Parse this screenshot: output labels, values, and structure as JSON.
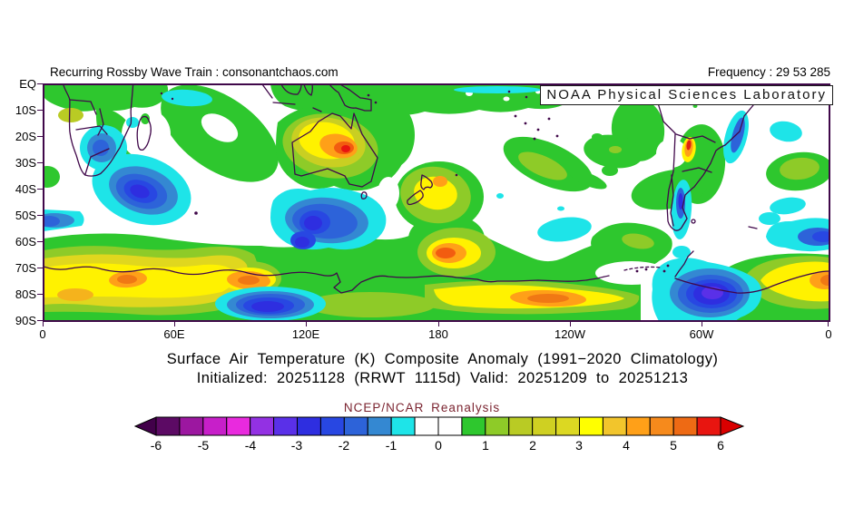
{
  "header": {
    "watermark": "Recurring Rossby Wave Train : consonantchaos.com",
    "frequency_label": "Frequency : 29 53 285",
    "lab_label": "NOAA Physical Sciences Laboratory"
  },
  "titles": {
    "line1": "Surface Air Temperature (K) Composite Anomaly (1991−2020 Climatology)",
    "line2": "Initialized: 20251128 (RRWT 1115d) Valid: 20251209 to 20251213",
    "legend_title": "NCEP/NCAR Reanalysis"
  },
  "axes": {
    "y_ticks": [
      "EQ",
      "10S",
      "20S",
      "30S",
      "40S",
      "50S",
      "60S",
      "70S",
      "80S",
      "90S"
    ],
    "x_ticks": [
      "0",
      "60E",
      "120E",
      "180",
      "120W",
      "60W",
      "0"
    ]
  },
  "colorbar": {
    "tick_labels": [
      "-6",
      "-5",
      "-4",
      "-3",
      "-2",
      "-1",
      "0",
      "1",
      "2",
      "3",
      "4",
      "5",
      "6"
    ],
    "left_arrow_color": "#42004a",
    "right_arrow_color": "#d90000",
    "segment_colors": [
      "#5c0a64",
      "#9c17a0",
      "#c71fc9",
      "#e92ade",
      "#9331e3",
      "#5a30e8",
      "#2e2ee0",
      "#2847e2",
      "#2d63d9",
      "#3488d2",
      "#1ee4e8",
      "#ffffff",
      "#ffffff",
      "#2ec72e",
      "#8ecb28",
      "#b9cb24",
      "#cfd022",
      "#dcd822",
      "#ffff00",
      "#f2c52c",
      "#ffa018",
      "#f68a1c",
      "#ee6a14",
      "#e81510"
    ]
  },
  "chart_data": {
    "type": "heatmap",
    "title": "Surface Air Temperature (K) Composite Anomaly (1991−2020 Climatology)",
    "subtitle": "Initialized: 20251128 (RRWT 1115d) Valid: 20251209 to 20251213",
    "source": "NCEP/NCAR Reanalysis",
    "units": "K",
    "projection": "cylindrical equidistant, longitude 0E-360E, latitude EQ-90S",
    "x_axis": {
      "label": "longitude",
      "ticks": [
        "0",
        "60E",
        "120E",
        "180",
        "120W",
        "60W",
        "0"
      ]
    },
    "y_axis": {
      "label": "latitude",
      "ticks": [
        "EQ",
        "10S",
        "20S",
        "30S",
        "40S",
        "50S",
        "60S",
        "70S",
        "80S",
        "90S"
      ]
    },
    "contour_levels": [
      -6,
      -5.5,
      -5,
      -4.5,
      -4,
      -3.5,
      -3,
      -2.5,
      -2,
      -1.5,
      -1,
      -0.5,
      0,
      0.5,
      1,
      1.5,
      2,
      2.5,
      3,
      3.5,
      4,
      4.5,
      5,
      5.5,
      6
    ],
    "palette_hex": [
      "#42004a",
      "#5c0a64",
      "#9c17a0",
      "#c71fc9",
      "#e92ade",
      "#9331e3",
      "#5a30e8",
      "#2e2ee0",
      "#2847e2",
      "#2d63d9",
      "#3488d2",
      "#1ee4e8",
      "#ffffff",
      "#ffffff",
      "#2ec72e",
      "#8ecb28",
      "#b9cb24",
      "#cfd022",
      "#dcd822",
      "#ffff00",
      "#f2c52c",
      "#ffa018",
      "#f68a1c",
      "#ee6a14",
      "#e81510",
      "#d90000"
    ],
    "anomaly_centers": [
      {
        "region": "central-east Australia",
        "lon": "135E",
        "lat": "25S",
        "value_K": 4.5
      },
      {
        "region": "Ross Sea / Antarctic coast near 180",
        "lon": "178W",
        "lat": "68S",
        "value_K": 5
      },
      {
        "region": "Marie Byrd Land plateau",
        "lon": "130W",
        "lat": "80S",
        "value_K": 4
      },
      {
        "region": "Dronning Maud Land coast",
        "lon": "35E",
        "lat": "74S",
        "value_K": 4
      },
      {
        "region": "Antarctic coast near 95E",
        "lon": "95E",
        "lat": "74S",
        "value_K": 4
      },
      {
        "region": "Antarctic coast near Greenwich",
        "lon": "3W",
        "lat": "74S",
        "value_K": 4
      },
      {
        "region": "New Zealand",
        "lon": "175E",
        "lat": "40S",
        "value_K": 3
      },
      {
        "region": "northern Chile / Andes",
        "lon": "67W",
        "lat": "25S",
        "value_K": 5.5
      },
      {
        "region": "SW Indian Ocean SE of Africa",
        "lon": "46E",
        "lat": "40S",
        "value_K": -3
      },
      {
        "region": "Southern Ocean south of Australia",
        "lon": "122E",
        "lat": "53S",
        "value_K": -3
      },
      {
        "region": "interior southern Africa",
        "lon": "24E",
        "lat": "25S",
        "value_K": -2
      },
      {
        "region": "Weddell Sea / Antarctic Peninsula",
        "lon": "52W",
        "lat": "79S",
        "value_K": -4.5
      },
      {
        "region": "Patagonia",
        "lon": "70W",
        "lat": "45S",
        "value_K": -3
      },
      {
        "region": "East Antarctic plateau near 100E",
        "lon": "100E",
        "lat": "84S",
        "value_K": -3
      },
      {
        "region": "SE Pacific",
        "lon": "122W",
        "lat": "55S",
        "value_K": -1
      },
      {
        "region": "South Atlantic near prime meridian",
        "lon": "5W",
        "lat": "58S",
        "value_K": -2.5
      },
      {
        "region": "coastal Brazil",
        "lon": "42W",
        "lat": "20S",
        "value_K": -2
      },
      {
        "region": "broad mid-latitude oceans",
        "lon": "various",
        "lat": "EQ-60S",
        "value_K": 1
      }
    ]
  }
}
